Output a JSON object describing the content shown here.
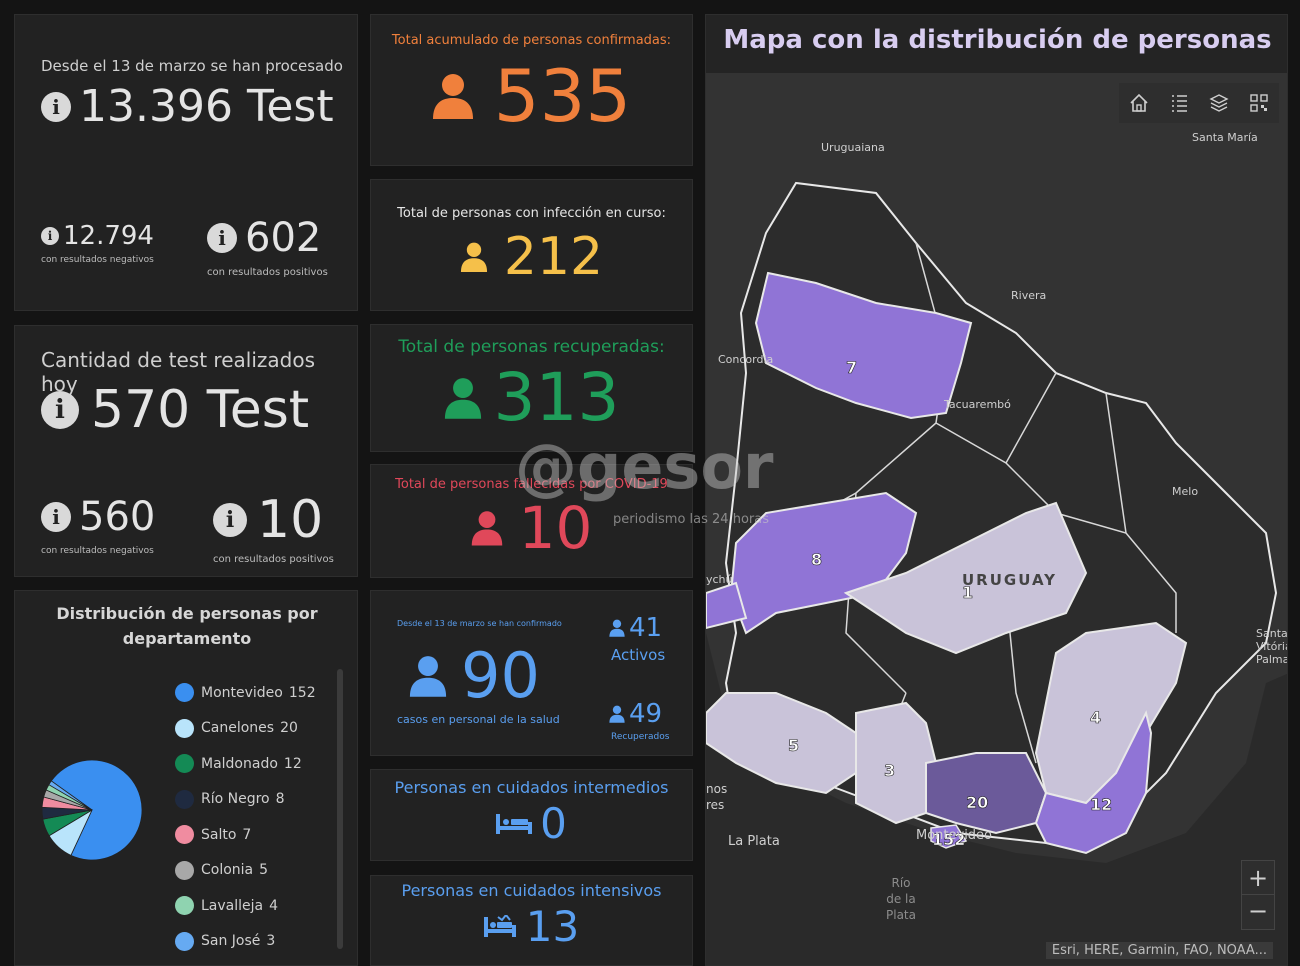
{
  "tests_total": {
    "caption": "Desde el 13 de marzo se han procesado",
    "value": "13.396 Test",
    "negatives_value": "12.794",
    "negatives_label": "con resultados negativos",
    "positives_value": "602",
    "positives_label": "con resultados positivos"
  },
  "tests_today": {
    "caption": "Cantidad de test realizados hoy",
    "value": "570 Test",
    "negatives_value": "560",
    "negatives_label": "con resultados negativos",
    "positives_value": "10",
    "positives_label": "con resultados positivos"
  },
  "confirmed": {
    "caption": "Total acumulado de personas confirmadas:",
    "value": "535",
    "color": "#f0803c"
  },
  "active": {
    "caption": "Total de personas con infección en curso:",
    "value": "212",
    "color": "#f5c04a"
  },
  "recovered": {
    "caption": "Total de personas recuperadas:",
    "value": "313",
    "color": "#1f9e5a"
  },
  "deceased": {
    "caption": "Total de personas fallecidas por COVID-19",
    "value": "10",
    "color": "#e0485a"
  },
  "health_staff": {
    "caption": "Desde el 13 de marzo se han confirmado",
    "value": "90",
    "sublabel": "casos en personal de la salud",
    "active_value": "41",
    "active_label": "Activos",
    "recovered_value": "49",
    "recovered_label": "Recuperados",
    "color": "#5a9ff0"
  },
  "intermediate_care": {
    "caption": "Personas en cuidados intermedios",
    "value": "0",
    "icon": "bed-icon"
  },
  "intensive_care": {
    "caption": "Personas en cuidados intensivos",
    "value": "13",
    "icon": "icu-bed-icon"
  },
  "distribution": {
    "title_line1": "Distribución de personas por",
    "title_line2": "departamento",
    "items": [
      {
        "name": "Montevideo",
        "value": "152",
        "color": "#3a8ff0"
      },
      {
        "name": "Canelones",
        "value": "20",
        "color": "#b9e4fb"
      },
      {
        "name": "Maldonado",
        "value": "12",
        "color": "#148a55"
      },
      {
        "name": "Río Negro",
        "value": "8",
        "color": "#1f2a40"
      },
      {
        "name": "Salto",
        "value": "7",
        "color": "#f08ca0"
      },
      {
        "name": "Colonia",
        "value": "5",
        "color": "#a8a8a8"
      },
      {
        "name": "Lavalleja",
        "value": "4",
        "color": "#8fd3b0"
      },
      {
        "name": "San José",
        "value": "3",
        "color": "#66aaf2"
      }
    ]
  },
  "map": {
    "title": "Mapa con la distribución de personas",
    "toolbar": [
      "home-icon",
      "legend-list-icon",
      "layers-icon",
      "qr-icon"
    ],
    "places": {
      "uruguaiana": "Uruguaiana",
      "santa_maria": "Santa María",
      "rivera": "Rivera",
      "concordia": "Concordia",
      "tacuarembo": "Tacuarembó",
      "melo": "Melo",
      "uruguay": "URUGUAY",
      "santa_vitoria": "Santa\nVitória\nPalma",
      "gualeguaychu": "ychú",
      "buenos_aires": "nos\nres",
      "la_plata": "La Plata",
      "montevideo": "Montevideo",
      "rio_de_la_plata": "Río\nde la\nPlata"
    },
    "counts": {
      "salto": "7",
      "rio_negro": "8",
      "durazno": "1",
      "lavalleja": "4",
      "colonia": "5",
      "san_jose": "3",
      "canelones": "20",
      "maldonado": "12",
      "montevideo": "152"
    },
    "zoom_in": "+",
    "zoom_out": "−",
    "attribution": "Esri, HERE, Garmin, FAO, NOAA..."
  },
  "watermark": {
    "brand": "@gesor",
    "tagline": "periodismo las 24 horas"
  }
}
